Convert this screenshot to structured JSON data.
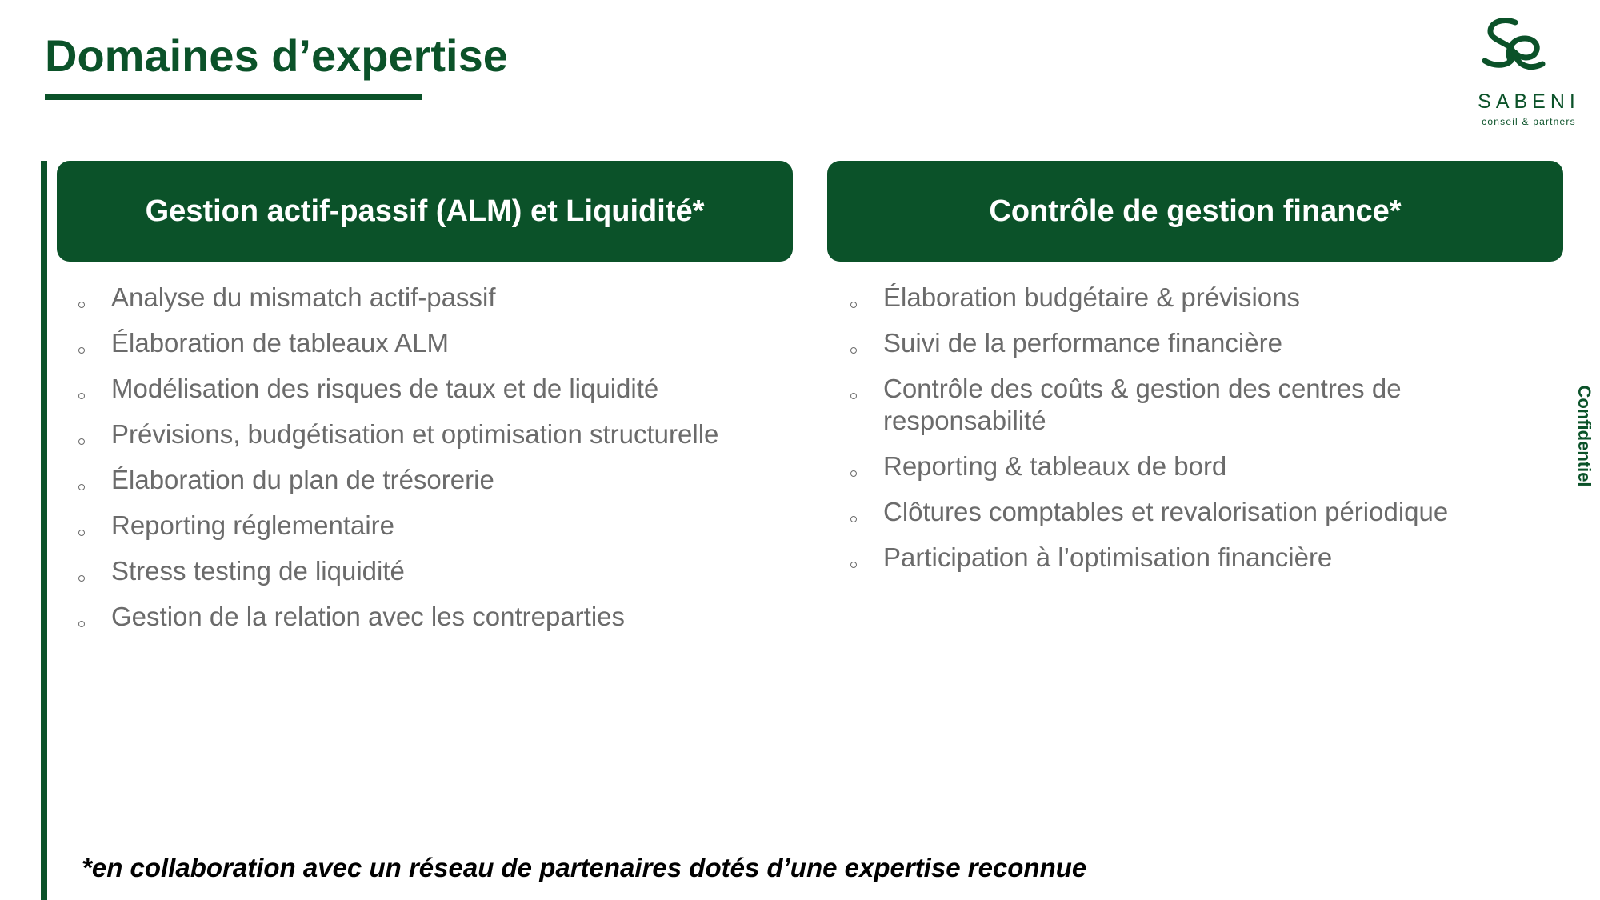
{
  "header": {
    "title": "Domaines d’expertise"
  },
  "logo": {
    "brand": "SABENI",
    "tagline": "conseil & partners",
    "monogram": "Se"
  },
  "panels": [
    {
      "title": "Gestion actif-passif (ALM) et Liquidité*",
      "items": [
        "Analyse du mismatch actif-passif",
        "Élaboration de tableaux ALM",
        "Modélisation des risques de taux et de liquidité",
        "Prévisions, budgétisation et optimisation structurelle",
        "Élaboration du plan de trésorerie",
        "Reporting réglementaire",
        "Stress testing de liquidité",
        "Gestion de la relation avec les contreparties"
      ]
    },
    {
      "title": "Contrôle de gestion finance*",
      "items": [
        "Élaboration budgétaire & prévisions",
        "Suivi de la performance financière",
        "Contrôle des coûts & gestion des centres de responsabilité",
        "Reporting & tableaux de bord",
        "Clôtures comptables et revalorisation périodique",
        "Participation à l’optimisation financière"
      ]
    }
  ],
  "side_label": "Confidentiel",
  "footnote": "*en collaboration avec un réseau de partenaires dotés d’une expertise reconnue",
  "colors": {
    "brand_green": "#0b5229",
    "body_text": "#6b6b6b",
    "footnote_text": "#000000",
    "background": "#ffffff"
  }
}
